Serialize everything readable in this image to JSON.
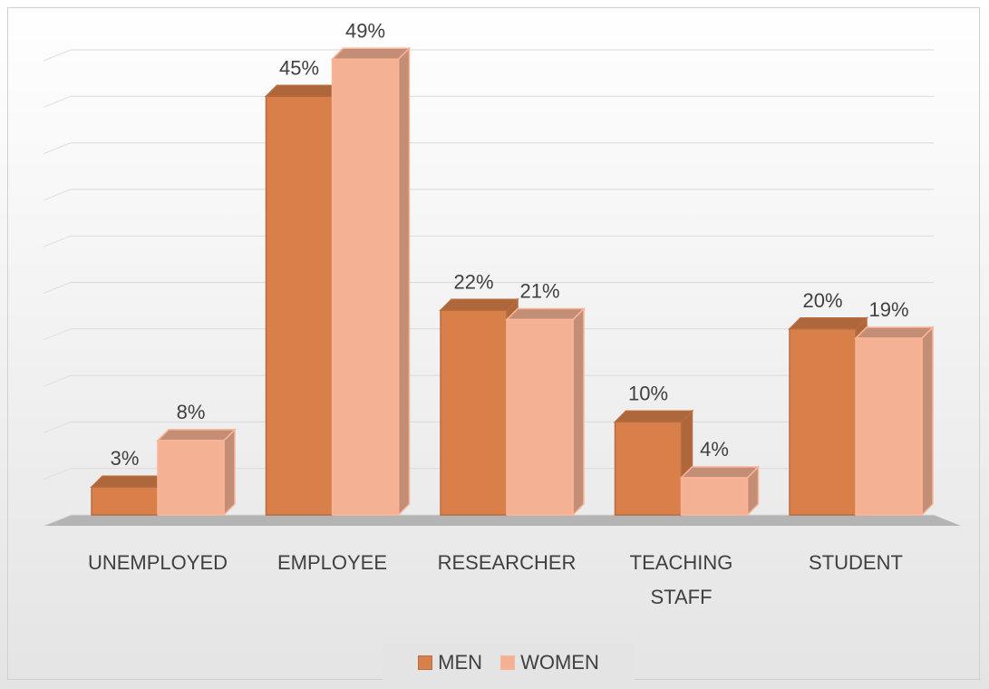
{
  "chart_data": {
    "type": "bar3d",
    "categories": [
      "UNEMPLOYED",
      "EMPLOYEE",
      "RESEARCHER",
      "TEACHING STAFF",
      "STUDENT"
    ],
    "series": [
      {
        "name": "MEN",
        "color": "#d9804a",
        "values": [
          3,
          45,
          22,
          10,
          20
        ],
        "value_labels": [
          "3%",
          "45%",
          "22%",
          "10%",
          "20%"
        ]
      },
      {
        "name": "WOMEN",
        "color": "#f5b194",
        "values": [
          8,
          49,
          21,
          4,
          19
        ],
        "value_labels": [
          "8%",
          "49%",
          "21%",
          "4%",
          "19%"
        ]
      }
    ],
    "ylim": [
      0,
      50
    ],
    "yticks": [
      0,
      5,
      10,
      15,
      20,
      25,
      30,
      35,
      40,
      45,
      50
    ],
    "grid": true,
    "legend": "bottom"
  }
}
